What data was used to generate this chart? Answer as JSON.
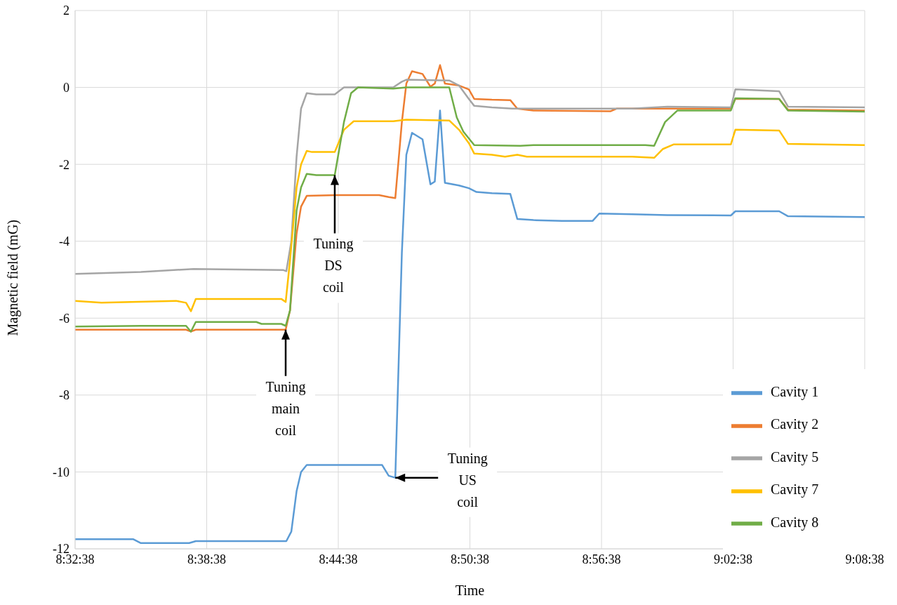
{
  "chart_data": {
    "type": "line",
    "xlabel": "Time",
    "ylabel": "Magnetic field (mG)",
    "xlim": [
      8.5439,
      9.1439
    ],
    "xticks": [
      {
        "value": 8.5439,
        "label": "8:32:38"
      },
      {
        "value": 8.6439,
        "label": "8:38:38"
      },
      {
        "value": 8.7439,
        "label": "8:44:38"
      },
      {
        "value": 8.8439,
        "label": "8:50:38"
      },
      {
        "value": 8.9439,
        "label": "8:56:38"
      },
      {
        "value": 9.0439,
        "label": "9:02:38"
      },
      {
        "value": 9.1439,
        "label": "9:08:38"
      }
    ],
    "ylim": [
      -12,
      2
    ],
    "yticks": [
      -12,
      -10,
      -8,
      -6,
      -4,
      -2,
      0,
      2
    ],
    "grid": true,
    "legend": "bottom right",
    "series": [
      {
        "name": "Cavity 1",
        "color": "#5b9bd5",
        "x": [
          8.5439,
          8.5882,
          8.5939,
          8.6306,
          8.6356,
          8.7022,
          8.7044,
          8.7082,
          8.7122,
          8.7156,
          8.7199,
          8.7772,
          8.7822,
          8.7872,
          8.7922,
          8.7956,
          8.7999,
          8.8079,
          8.8139,
          8.8172,
          8.8212,
          8.8249,
          8.8356,
          8.8431,
          8.8489,
          8.8606,
          8.8746,
          8.8799,
          8.8922,
          8.9139,
          8.9372,
          8.9422,
          8.9672,
          8.9939,
          9.0422,
          9.0456,
          9.0789,
          9.0856,
          9.1439
        ],
        "values": [
          -11.75,
          -11.75,
          -11.85,
          -11.85,
          -11.8,
          -11.8,
          -11.8,
          -11.55,
          -10.5,
          -10.0,
          -9.82,
          -9.82,
          -10.1,
          -10.15,
          -4.3,
          -1.75,
          -1.18,
          -1.35,
          -2.52,
          -2.45,
          -0.6,
          -2.48,
          -2.55,
          -2.62,
          -2.72,
          -2.75,
          -2.77,
          -3.42,
          -3.45,
          -3.47,
          -3.47,
          -3.28,
          -3.3,
          -3.32,
          -3.33,
          -3.22,
          -3.22,
          -3.35,
          -3.37
        ]
      },
      {
        "name": "Cavity 2",
        "color": "#ed7d31",
        "x": [
          8.5439,
          8.6282,
          8.6319,
          8.6356,
          8.7006,
          8.7039,
          8.7072,
          8.7122,
          8.7156,
          8.7199,
          8.7422,
          8.7749,
          8.7822,
          8.7872,
          8.7922,
          8.7956,
          8.7999,
          8.8079,
          8.8139,
          8.8172,
          8.8212,
          8.8249,
          8.8356,
          8.8431,
          8.8472,
          8.8606,
          8.8746,
          8.8799,
          8.8922,
          8.9506,
          8.9556,
          9.0422,
          9.0456,
          9.0789,
          9.0856,
          9.1439
        ],
        "values": [
          -6.3,
          -6.3,
          -6.35,
          -6.3,
          -6.3,
          -6.3,
          -5.8,
          -3.8,
          -3.1,
          -2.82,
          -2.8,
          -2.8,
          -2.85,
          -2.88,
          -0.9,
          0.1,
          0.42,
          0.35,
          0.02,
          0.1,
          0.58,
          0.1,
          0.05,
          -0.05,
          -0.3,
          -0.32,
          -0.33,
          -0.55,
          -0.6,
          -0.62,
          -0.55,
          -0.55,
          -0.3,
          -0.3,
          -0.58,
          -0.6
        ]
      },
      {
        "name": "Cavity 5",
        "color": "#a5a5a5",
        "x": [
          8.5439,
          8.5939,
          8.6339,
          8.7022,
          8.7044,
          8.7082,
          8.7122,
          8.7156,
          8.7199,
          8.7272,
          8.7412,
          8.7482,
          8.7856,
          8.7922,
          8.7956,
          8.8282,
          8.8356,
          8.8431,
          8.8472,
          8.8606,
          8.8762,
          8.9672,
          8.9939,
          9.0422,
          9.0456,
          9.0789,
          9.0856,
          9.1439
        ],
        "values": [
          -4.85,
          -4.8,
          -4.72,
          -4.75,
          -4.78,
          -4.0,
          -1.8,
          -0.55,
          -0.15,
          -0.18,
          -0.18,
          0,
          0,
          0.15,
          0.2,
          0.18,
          0.05,
          -0.3,
          -0.48,
          -0.52,
          -0.55,
          -0.55,
          -0.5,
          -0.52,
          -0.05,
          -0.1,
          -0.5,
          -0.52
        ]
      },
      {
        "name": "Cavity 7",
        "color": "#ffc000",
        "x": [
          8.5439,
          8.5639,
          8.6206,
          8.6282,
          8.6319,
          8.6356,
          8.7006,
          8.7039,
          8.7072,
          8.7122,
          8.7156,
          8.7199,
          8.7239,
          8.7412,
          8.7482,
          8.7556,
          8.7856,
          8.7956,
          8.8282,
          8.8356,
          8.8431,
          8.8472,
          8.8606,
          8.8706,
          8.8799,
          8.8872,
          8.9672,
          8.9839,
          8.9906,
          8.9989,
          9.0422,
          9.0456,
          9.0789,
          9.0856,
          9.1439
        ],
        "values": [
          -5.55,
          -5.6,
          -5.55,
          -5.6,
          -5.82,
          -5.5,
          -5.5,
          -5.58,
          -4.5,
          -2.6,
          -2.0,
          -1.65,
          -1.68,
          -1.68,
          -1.1,
          -0.88,
          -0.88,
          -0.84,
          -0.86,
          -1.1,
          -1.45,
          -1.72,
          -1.75,
          -1.8,
          -1.75,
          -1.8,
          -1.8,
          -1.83,
          -1.6,
          -1.48,
          -1.48,
          -1.1,
          -1.12,
          -1.47,
          -1.5
        ]
      },
      {
        "name": "Cavity 8",
        "color": "#70ad47",
        "x": [
          8.5439,
          8.5939,
          8.6282,
          8.6319,
          8.6356,
          8.6816,
          8.6856,
          8.7006,
          8.7039,
          8.7072,
          8.7122,
          8.7156,
          8.7199,
          8.7272,
          8.7412,
          8.7482,
          8.7536,
          8.7589,
          8.7856,
          8.7956,
          8.8282,
          8.8339,
          8.8389,
          8.8472,
          8.8822,
          8.8922,
          8.9772,
          8.9839,
          8.9922,
          9.0016,
          9.0422,
          9.0456,
          9.0789,
          9.0856,
          9.1439
        ],
        "values": [
          -6.22,
          -6.2,
          -6.2,
          -6.35,
          -6.1,
          -6.1,
          -6.15,
          -6.15,
          -6.2,
          -5.8,
          -3.2,
          -2.6,
          -2.25,
          -2.28,
          -2.28,
          -0.9,
          -0.15,
          0,
          -0.03,
          0,
          0,
          -0.78,
          -1.15,
          -1.5,
          -1.52,
          -1.5,
          -1.5,
          -1.52,
          -0.9,
          -0.6,
          -0.6,
          -0.28,
          -0.3,
          -0.6,
          -0.63
        ]
      }
    ],
    "annotations": [
      {
        "text": "Tuning main coil",
        "x": 8.7039,
        "y": -6.3
      },
      {
        "text": "Tuning DS coil",
        "x": 8.7412,
        "y": -2.28
      },
      {
        "text": "Tuning US coil",
        "x": 8.7872,
        "y": -10.15
      }
    ]
  }
}
